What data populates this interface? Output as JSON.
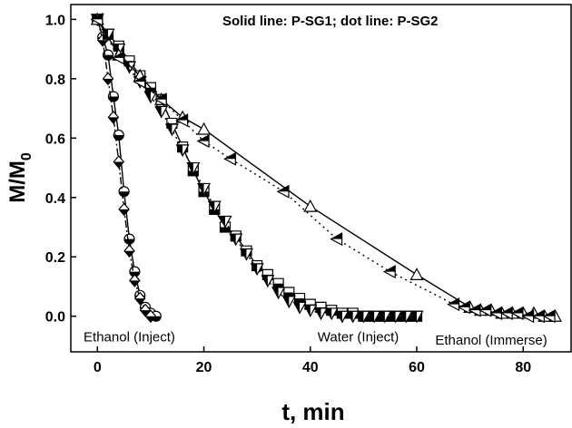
{
  "chart_data": {
    "type": "scatter",
    "title": "",
    "xlabel": "t, min",
    "ylabel_main": "M/M",
    "ylabel_sub": "0",
    "xlim": [
      -5,
      89
    ],
    "ylim": [
      -0.12,
      1.05
    ],
    "x_ticks": [
      0,
      20,
      40,
      60,
      80
    ],
    "x_tick_labels": [
      "0",
      "20",
      "40",
      "60",
      "80"
    ],
    "y_ticks": [
      0.0,
      0.2,
      0.4,
      0.6,
      0.8,
      1.0
    ],
    "y_tick_labels": [
      "0.0",
      "0.2",
      "0.4",
      "0.6",
      "0.8",
      "1.0"
    ],
    "grid": false,
    "note": "Solid line: P-SG1; dot line: P-SG2",
    "annotations": [
      {
        "text": "Ethanol (Inject)",
        "x": 6,
        "y": -0.07
      },
      {
        "text": "Water (Inject)",
        "x": 49,
        "y": -0.07
      },
      {
        "text": "Ethanol (Immerse)",
        "x": 74,
        "y": -0.08
      }
    ],
    "series": [
      {
        "marker": "circle-half",
        "line": "solid",
        "points": [
          [
            0,
            1.0
          ],
          [
            1,
            0.94
          ],
          [
            2,
            0.88
          ],
          [
            3,
            0.74
          ],
          [
            4,
            0.61
          ],
          [
            5,
            0.42
          ],
          [
            6,
            0.26
          ],
          [
            7,
            0.15
          ],
          [
            8,
            0.07
          ],
          [
            9,
            0.03
          ],
          [
            10,
            0.01
          ],
          [
            11,
            0.0
          ]
        ]
      },
      {
        "marker": "diamond-half",
        "line": "dashdot",
        "points": [
          [
            0,
            1.0
          ],
          [
            1,
            0.93
          ],
          [
            2,
            0.8
          ],
          [
            3,
            0.67
          ],
          [
            4,
            0.52
          ],
          [
            5,
            0.36
          ],
          [
            6,
            0.22
          ],
          [
            7,
            0.12
          ],
          [
            8,
            0.06
          ],
          [
            9,
            0.02
          ],
          [
            10,
            0.0
          ]
        ]
      },
      {
        "marker": "square-half",
        "line": "solid",
        "points": [
          [
            0,
            1.0
          ],
          [
            2,
            0.95
          ],
          [
            4,
            0.91
          ],
          [
            6,
            0.86
          ],
          [
            8,
            0.81
          ],
          [
            10,
            0.77
          ],
          [
            12,
            0.73
          ],
          [
            14,
            0.65
          ],
          [
            16,
            0.57
          ],
          [
            18,
            0.49
          ],
          [
            20,
            0.42
          ],
          [
            22,
            0.36
          ],
          [
            24,
            0.3
          ],
          [
            26,
            0.27
          ],
          [
            28,
            0.22
          ],
          [
            30,
            0.17
          ],
          [
            32,
            0.14
          ],
          [
            34,
            0.11
          ],
          [
            36,
            0.08
          ],
          [
            38,
            0.06
          ],
          [
            40,
            0.04
          ],
          [
            42,
            0.03
          ],
          [
            44,
            0.02
          ],
          [
            46,
            0.01
          ],
          [
            48,
            0.01
          ],
          [
            50,
            0.0
          ],
          [
            52,
            0.0
          ],
          [
            54,
            0.0
          ],
          [
            56,
            0.0
          ],
          [
            58,
            0.0
          ],
          [
            60,
            0.0
          ]
        ]
      },
      {
        "marker": "triangle-down-half",
        "line": "dotted",
        "points": [
          [
            0,
            1.0
          ],
          [
            2,
            0.95
          ],
          [
            4,
            0.9
          ],
          [
            6,
            0.84
          ],
          [
            8,
            0.79
          ],
          [
            10,
            0.74
          ],
          [
            12,
            0.69
          ],
          [
            14,
            0.63
          ],
          [
            16,
            0.56
          ],
          [
            18,
            0.5
          ],
          [
            20,
            0.43
          ],
          [
            22,
            0.37
          ],
          [
            24,
            0.32
          ],
          [
            26,
            0.26
          ],
          [
            28,
            0.21
          ],
          [
            30,
            0.16
          ],
          [
            32,
            0.12
          ],
          [
            34,
            0.08
          ],
          [
            36,
            0.05
          ],
          [
            38,
            0.03
          ],
          [
            40,
            0.02
          ],
          [
            42,
            0.01
          ],
          [
            44,
            0.01
          ],
          [
            46,
            0.0
          ],
          [
            48,
            0.0
          ],
          [
            50,
            0.0
          ],
          [
            52,
            0.0
          ],
          [
            54,
            0.0
          ],
          [
            56,
            0.0
          ],
          [
            58,
            0.0
          ],
          [
            60,
            0.0
          ]
        ]
      },
      {
        "marker": "triangle-up-open",
        "line": "solid",
        "points": [
          [
            0,
            1.0
          ],
          [
            4,
            0.88
          ],
          [
            8,
            0.81
          ],
          [
            12,
            0.73
          ],
          [
            16,
            0.67
          ],
          [
            20,
            0.63
          ],
          [
            40,
            0.37
          ],
          [
            60,
            0.14
          ],
          [
            70,
            0.03
          ],
          [
            72,
            0.02
          ],
          [
            74,
            0.02
          ],
          [
            76,
            0.01
          ],
          [
            78,
            0.01
          ],
          [
            80,
            0.01
          ],
          [
            82,
            0.01
          ],
          [
            84,
            0.0
          ],
          [
            86,
            0.0
          ]
        ]
      },
      {
        "marker": "triangle-left-half",
        "line": "dotted",
        "points": [
          [
            0,
            1.0
          ],
          [
            4,
            0.87
          ],
          [
            8,
            0.79
          ],
          [
            12,
            0.73
          ],
          [
            16,
            0.66
          ],
          [
            20,
            0.59
          ],
          [
            25,
            0.53
          ],
          [
            35,
            0.42
          ],
          [
            45,
            0.26
          ],
          [
            55,
            0.15
          ],
          [
            67,
            0.04
          ],
          [
            69,
            0.03
          ],
          [
            71,
            0.02
          ],
          [
            73,
            0.02
          ],
          [
            75,
            0.01
          ],
          [
            77,
            0.01
          ],
          [
            79,
            0.01
          ],
          [
            81,
            0.0
          ],
          [
            83,
            0.0
          ],
          [
            85,
            0.0
          ]
        ]
      }
    ]
  }
}
